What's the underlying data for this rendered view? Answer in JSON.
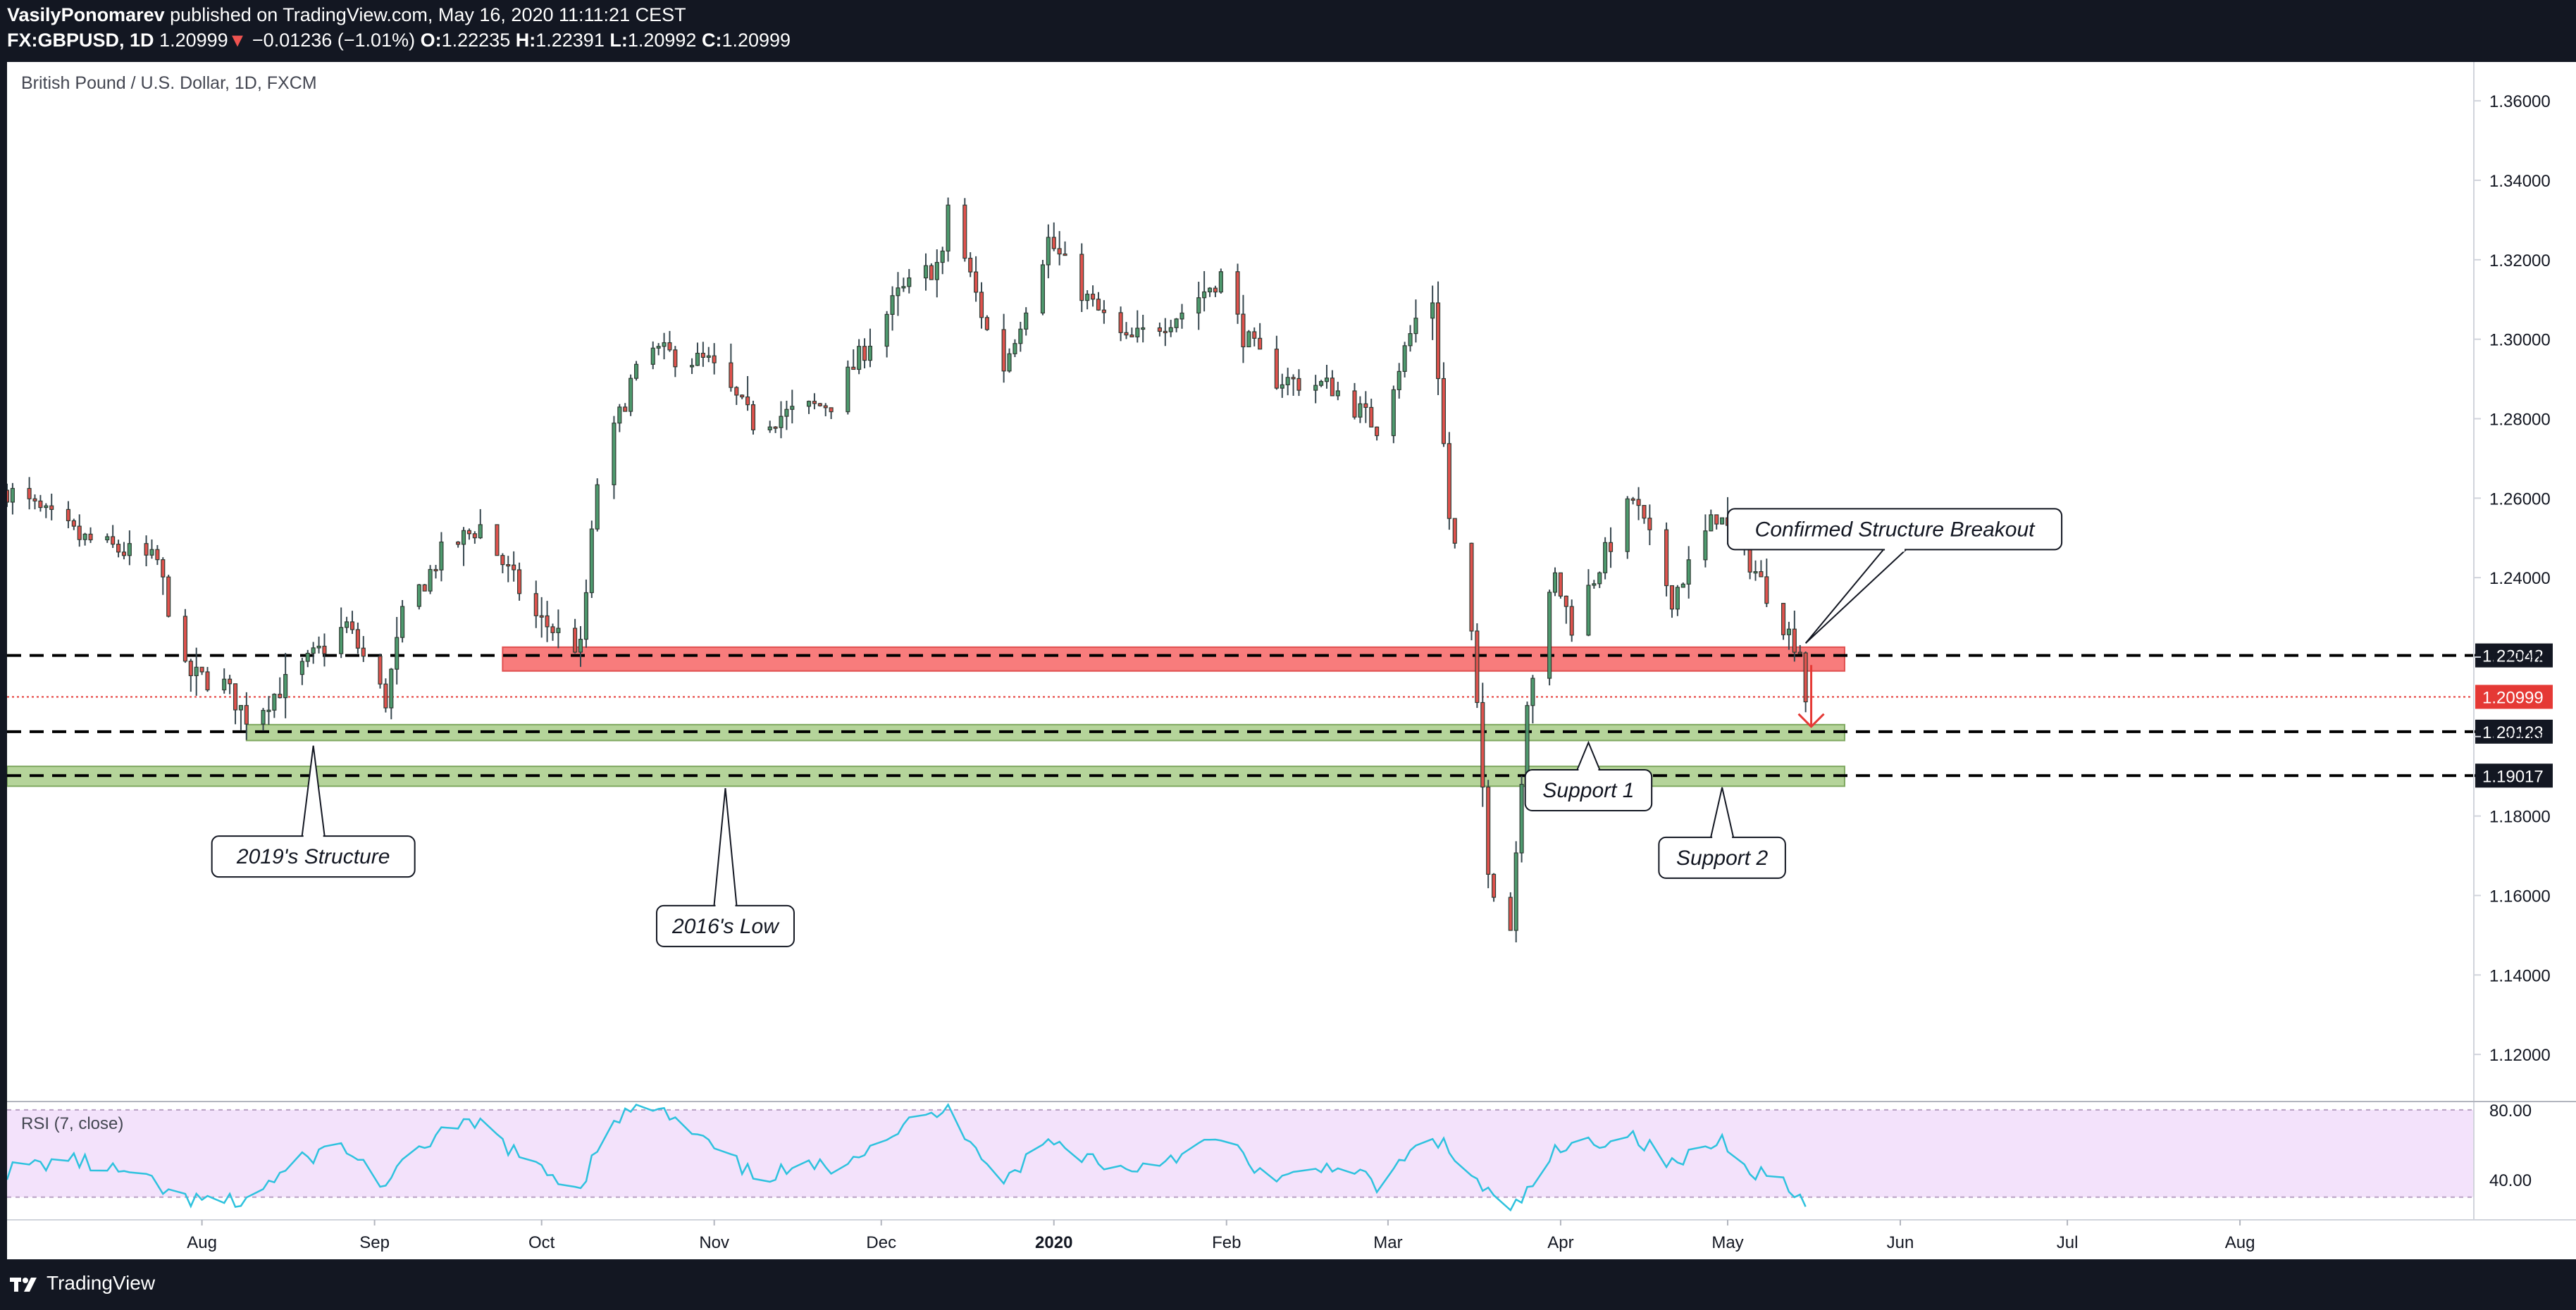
{
  "header": {
    "author": "VasilyPonomarev",
    "published_text": "published on TradingView.com, May 16, 2020 11:11:21 CEST",
    "symbol": "FX:GBPUSD, 1D",
    "last": "1.20999",
    "change_arrow": "▼",
    "change": "−0.01236 (−1.01%)",
    "o_label": "O:",
    "o_value": "1.22235",
    "h_label": "H:",
    "h_value": "1.22391",
    "l_label": "L:",
    "l_value": "1.20992",
    "c_label": "C:",
    "c_value": "1.20999"
  },
  "footer": {
    "brand": "TradingView",
    "logo_icon": "tradingview-logo-icon"
  },
  "colors": {
    "up": "#4e9a6e",
    "down": "#e0524d",
    "resistance_zone": "#f87c7c",
    "support_zone": "#b5d49a",
    "rsi_line": "#2ec2de",
    "rsi_band": "#f3e2fb",
    "last_price": "#e53935",
    "level_label": "#131722"
  },
  "chart_data": {
    "type": "candlestick",
    "title": "British Pound / U.S. Dollar, 1D, FXCM",
    "xlabel": "",
    "ylabel": "",
    "ylim": [
      1.10832,
      1.36978
    ],
    "x_range": [
      "2019-06-27",
      "2020-09-12"
    ],
    "y_ticks": [
      "1.36000",
      "1.34000",
      "1.32000",
      "1.30000",
      "1.28000",
      "1.26000",
      "1.24000",
      "1.22000",
      "1.20000",
      "1.18000",
      "1.16000",
      "1.14000",
      "1.12000"
    ],
    "x_ticks": [
      {
        "date": "2019-08-01",
        "label": "Aug"
      },
      {
        "date": "2019-09-01",
        "label": "Sep"
      },
      {
        "date": "2019-10-01",
        "label": "Oct"
      },
      {
        "date": "2019-11-01",
        "label": "Nov"
      },
      {
        "date": "2019-12-01",
        "label": "Dec"
      },
      {
        "date": "2020-01-01",
        "label": "2020",
        "bold": true
      },
      {
        "date": "2020-02-01",
        "label": "Feb"
      },
      {
        "date": "2020-03-01",
        "label": "Mar"
      },
      {
        "date": "2020-04-01",
        "label": "Apr"
      },
      {
        "date": "2020-05-01",
        "label": "May"
      },
      {
        "date": "2020-06-01",
        "label": "Jun"
      },
      {
        "date": "2020-07-01",
        "label": "Jul"
      },
      {
        "date": "2020-08-01",
        "label": "Aug"
      }
    ],
    "price_series": [
      {
        "date": "2019-06-27",
        "close": 1.262
      },
      {
        "date": "2019-07-10",
        "close": 1.25
      },
      {
        "date": "2019-07-24",
        "close": 1.244
      },
      {
        "date": "2019-07-29",
        "close": 1.216
      },
      {
        "date": "2019-08-05",
        "close": 1.213
      },
      {
        "date": "2019-08-09",
        "close": 1.205
      },
      {
        "date": "2019-08-12",
        "close": 1.208
      },
      {
        "date": "2019-08-21",
        "close": 1.22
      },
      {
        "date": "2019-08-27",
        "close": 1.228
      },
      {
        "date": "2019-09-03",
        "close": 1.209
      },
      {
        "date": "2019-09-06",
        "close": 1.23
      },
      {
        "date": "2019-09-13",
        "close": 1.246
      },
      {
        "date": "2019-09-20",
        "close": 1.253
      },
      {
        "date": "2019-09-30",
        "close": 1.23
      },
      {
        "date": "2019-10-08",
        "close": 1.222
      },
      {
        "date": "2019-10-11",
        "close": 1.264
      },
      {
        "date": "2019-10-17",
        "close": 1.289
      },
      {
        "date": "2019-10-21",
        "close": 1.297
      },
      {
        "date": "2019-10-31",
        "close": 1.294
      },
      {
        "date": "2019-11-08",
        "close": 1.279
      },
      {
        "date": "2019-11-22",
        "close": 1.284
      },
      {
        "date": "2019-12-04",
        "close": 1.311
      },
      {
        "date": "2019-12-12",
        "close": 1.32
      },
      {
        "date": "2019-12-13",
        "close": 1.334
      },
      {
        "date": "2019-12-20",
        "close": 1.302
      },
      {
        "date": "2019-12-23",
        "close": 1.293
      },
      {
        "date": "2019-12-31",
        "close": 1.325
      },
      {
        "date": "2020-01-07",
        "close": 1.31
      },
      {
        "date": "2020-01-14",
        "close": 1.299
      },
      {
        "date": "2020-01-24",
        "close": 1.307
      },
      {
        "date": "2020-01-31",
        "close": 1.316
      },
      {
        "date": "2020-02-04",
        "close": 1.301
      },
      {
        "date": "2020-02-10",
        "close": 1.29
      },
      {
        "date": "2020-02-20",
        "close": 1.288
      },
      {
        "date": "2020-02-28",
        "close": 1.278
      },
      {
        "date": "2020-03-06",
        "close": 1.305
      },
      {
        "date": "2020-03-09",
        "close": 1.31
      },
      {
        "date": "2020-03-12",
        "close": 1.255
      },
      {
        "date": "2020-03-16",
        "close": 1.225
      },
      {
        "date": "2020-03-19",
        "close": 1.168
      },
      {
        "date": "2020-03-20",
        "close": 1.162
      },
      {
        "date": "2020-03-23",
        "close": 1.152
      },
      {
        "date": "2020-03-26",
        "close": 1.21
      },
      {
        "date": "2020-03-31",
        "close": 1.24
      },
      {
        "date": "2020-04-03",
        "close": 1.228
      },
      {
        "date": "2020-04-09",
        "close": 1.246
      },
      {
        "date": "2020-04-14",
        "close": 1.26
      },
      {
        "date": "2020-04-21",
        "close": 1.235
      },
      {
        "date": "2020-04-29",
        "close": 1.256
      },
      {
        "date": "2020-05-05",
        "close": 1.244
      },
      {
        "date": "2020-05-12",
        "close": 1.226
      },
      {
        "date": "2020-05-14",
        "close": 1.222
      },
      {
        "date": "2020-05-15",
        "close": 1.20999
      }
    ],
    "reference_levels": [
      {
        "value": 1.22042,
        "label": "1.22042"
      },
      {
        "value": 1.20123,
        "label": "1.20123"
      },
      {
        "value": 1.19017,
        "label": "1.19017"
      }
    ],
    "last_price": {
      "value": 1.20999,
      "label": "1.20999"
    },
    "zones": [
      {
        "kind": "resistance",
        "from": "2019-09-24",
        "to": "2020-05-22",
        "low": 1.2165,
        "high": 1.2225
      },
      {
        "kind": "support",
        "from": "2019-08-09",
        "to": "2020-05-22",
        "low": 1.199,
        "high": 1.203
      },
      {
        "kind": "support",
        "from": "2019-06-27",
        "to": "2020-05-22",
        "low": 1.1875,
        "high": 1.1925
      }
    ],
    "annotations": [
      {
        "text": "Confirmed Structure Breakout",
        "box_date": "2020-05-31",
        "box_price": 1.2522,
        "tip_date": "2020-05-15",
        "tip_price": 1.2235
      },
      {
        "text": "2019's Structure",
        "box_date": "2019-08-21",
        "box_price": 1.1698,
        "tip_date": "2019-08-21",
        "tip_price": 1.1977
      },
      {
        "text": "2016's Low",
        "box_date": "2019-11-03",
        "box_price": 1.1523,
        "tip_date": "2019-11-03",
        "tip_price": 1.187
      },
      {
        "text": "Support 1",
        "box_date": "2020-04-06",
        "box_price": 1.1865,
        "tip_date": "2020-04-06",
        "tip_price": 1.1985
      },
      {
        "text": "Support 2",
        "box_date": "2020-04-30",
        "box_price": 1.1695,
        "tip_date": "2020-04-30",
        "tip_price": 1.1872
      }
    ],
    "projection": {
      "from_date": "2020-05-16",
      "from_price": 1.218,
      "to_price": 1.2025
    },
    "rsi": {
      "label": "RSI (7, close)",
      "ylim": [
        17,
        84
      ],
      "band": [
        30,
        80
      ],
      "ticks": [
        "80.00",
        "40.00"
      ],
      "series": [
        {
          "date": "2019-06-27",
          "value": 45
        },
        {
          "date": "2019-07-08",
          "value": 52
        },
        {
          "date": "2019-07-20",
          "value": 42
        },
        {
          "date": "2019-07-29",
          "value": 28
        },
        {
          "date": "2019-08-08",
          "value": 27
        },
        {
          "date": "2019-08-20",
          "value": 53
        },
        {
          "date": "2019-08-26",
          "value": 60
        },
        {
          "date": "2019-09-03",
          "value": 37
        },
        {
          "date": "2019-09-12",
          "value": 66
        },
        {
          "date": "2019-09-20",
          "value": 72
        },
        {
          "date": "2019-09-30",
          "value": 46
        },
        {
          "date": "2019-10-08",
          "value": 36
        },
        {
          "date": "2019-10-13",
          "value": 75
        },
        {
          "date": "2019-10-21",
          "value": 82
        },
        {
          "date": "2019-10-31",
          "value": 60
        },
        {
          "date": "2019-11-08",
          "value": 42
        },
        {
          "date": "2019-11-22",
          "value": 48
        },
        {
          "date": "2019-12-06",
          "value": 72
        },
        {
          "date": "2019-12-13",
          "value": 80
        },
        {
          "date": "2019-12-23",
          "value": 40
        },
        {
          "date": "2019-12-31",
          "value": 62
        },
        {
          "date": "2020-01-14",
          "value": 45
        },
        {
          "date": "2020-01-31",
          "value": 63
        },
        {
          "date": "2020-02-10",
          "value": 38
        },
        {
          "date": "2020-02-21",
          "value": 50
        },
        {
          "date": "2020-02-28",
          "value": 36
        },
        {
          "date": "2020-03-09",
          "value": 66
        },
        {
          "date": "2020-03-15",
          "value": 45
        },
        {
          "date": "2020-03-23",
          "value": 20
        },
        {
          "date": "2020-03-31",
          "value": 55
        },
        {
          "date": "2020-04-07",
          "value": 62
        },
        {
          "date": "2020-04-14",
          "value": 66
        },
        {
          "date": "2020-04-21",
          "value": 48
        },
        {
          "date": "2020-04-30",
          "value": 63
        },
        {
          "date": "2020-05-06",
          "value": 45
        },
        {
          "date": "2020-05-12",
          "value": 38
        },
        {
          "date": "2020-05-15",
          "value": 24
        }
      ]
    }
  }
}
